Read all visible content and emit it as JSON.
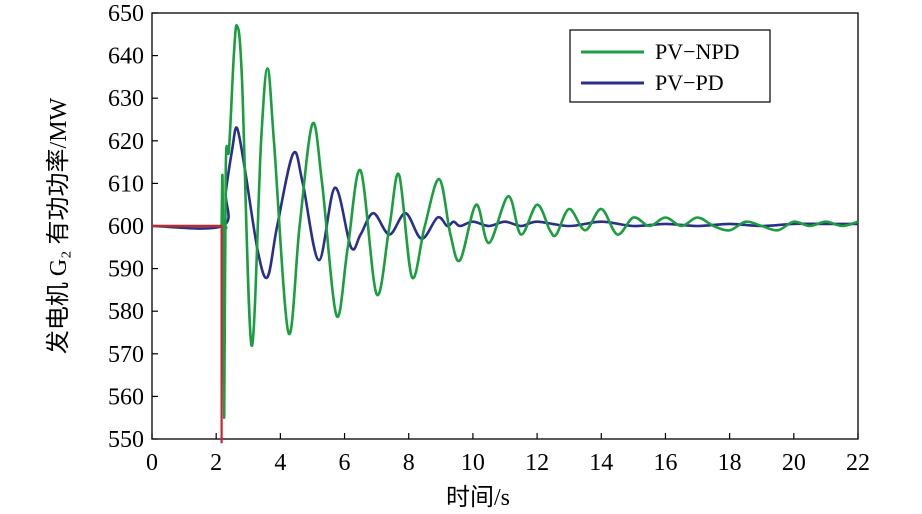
{
  "chart_data": {
    "type": "line",
    "xlabel": "时间/s",
    "ylabel": "发电机 G₂ 有功功率/MW",
    "xlim": [
      0,
      22
    ],
    "ylim": [
      550,
      650
    ],
    "xticks": [
      "0",
      "2",
      "4",
      "6",
      "8",
      "10",
      "12",
      "14",
      "16",
      "18",
      "20",
      "22"
    ],
    "yticks": [
      "550",
      "560",
      "570",
      "580",
      "590",
      "600",
      "610",
      "620",
      "630",
      "640",
      "650"
    ],
    "grid": false,
    "legend_position": "top-right",
    "series": [
      {
        "name": "PV−NPD",
        "color": "#1a9e3f",
        "x": [
          0,
          2.15,
          2.17,
          2.2,
          2.25,
          2.3,
          2.4,
          2.55,
          2.65,
          2.8,
          3.1,
          3.4,
          3.6,
          3.8,
          4.25,
          4.6,
          5.0,
          5.3,
          5.75,
          6.1,
          6.5,
          7.0,
          7.4,
          7.7,
          8.1,
          8.5,
          8.95,
          9.3,
          9.6,
          10.1,
          10.5,
          11.1,
          11.5,
          12.0,
          12.4,
          12.6,
          13.0,
          13.5,
          14.0,
          14.5,
          15.0,
          15.5,
          16.0,
          16.5,
          17.0,
          17.5,
          18.0,
          18.5,
          19.0,
          19.5,
          20.0,
          20.5,
          21.0,
          21.5,
          22.0
        ],
        "values": [
          600,
          600,
          600,
          610,
          555,
          614,
          618,
          640,
          647,
          635,
          572,
          620,
          637,
          620,
          575,
          600,
          624,
          610,
          579,
          595,
          613,
          584,
          600,
          612,
          588,
          600,
          611,
          598,
          592,
          605,
          596,
          607,
          598,
          605,
          599,
          598,
          604,
          599,
          604,
          598,
          602,
          600,
          602,
          600,
          602,
          600,
          599,
          601,
          600,
          599,
          601,
          600,
          601,
          600,
          601
        ]
      },
      {
        "name": "PV−PD",
        "color": "#2b2f8a",
        "x": [
          0,
          2.2,
          2.3,
          2.5,
          2.65,
          2.9,
          3.3,
          3.6,
          3.9,
          4.4,
          4.7,
          5.2,
          5.7,
          6.2,
          6.5,
          6.9,
          7.4,
          7.9,
          8.4,
          8.9,
          9.2,
          9.4,
          9.6,
          10.0,
          10.5,
          11.0,
          11.5,
          12.0,
          13.0,
          14.0,
          15.0,
          16.0,
          17.0,
          18.0,
          19.0,
          20.0,
          21.0,
          22.0
        ],
        "values": [
          600,
          600,
          608,
          618,
          623,
          613,
          594,
          588,
          600,
          617,
          610,
          592,
          609,
          595,
          598,
          603,
          598,
          603,
          597,
          602,
          600,
          601,
          600,
          601,
          600,
          601,
          600,
          601,
          600,
          601,
          600,
          600.5,
          600,
          600.5,
          600,
          600.5,
          600.5,
          600.5
        ]
      },
      {
        "name": "",
        "color": "#cc2233",
        "x": [
          0,
          2.15,
          2.17,
          2.17
        ],
        "values": [
          600,
          600,
          600,
          549
        ]
      }
    ]
  }
}
